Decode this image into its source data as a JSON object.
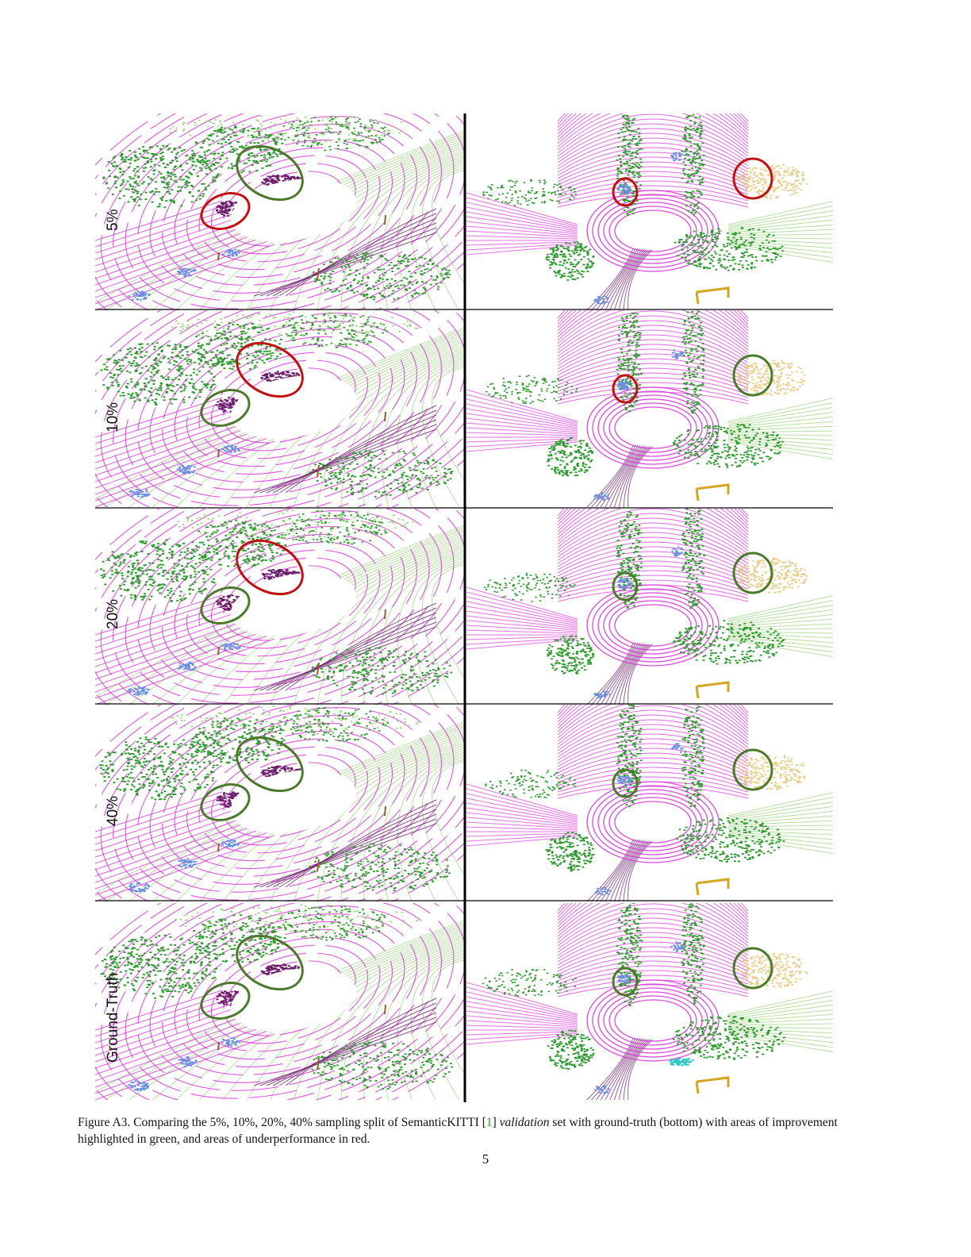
{
  "figure": {
    "rows": [
      {
        "label": "5%",
        "left_marks": [
          "green",
          "red"
        ],
        "right_marks": [
          "red",
          "red"
        ]
      },
      {
        "label": "10%",
        "left_marks": [
          "red",
          "green"
        ],
        "right_marks": [
          "red",
          "green"
        ]
      },
      {
        "label": "20%",
        "left_marks": [
          "red",
          "green"
        ],
        "right_marks": [
          "green",
          "green"
        ]
      },
      {
        "label": "40%",
        "left_marks": [
          "green",
          "green"
        ],
        "right_marks": [
          "green",
          "green"
        ]
      },
      {
        "label": "Ground-Truth",
        "left_marks": [
          "green",
          "green"
        ],
        "right_marks": [
          "green",
          "green"
        ]
      }
    ],
    "colors": {
      "road": "#d836d8",
      "sidewalk": "#6b1f6b",
      "vegetation": "#2f9a2f",
      "terrain": "#9ad07a",
      "building": "#e8cf8f",
      "car": "#6a8fe0",
      "trunk": "#9a5a2a",
      "fence": "#d4a520",
      "truck": "#2fc8c8",
      "good_ring": "#4a7a2a",
      "bad_ring": "#c01010"
    }
  },
  "caption": {
    "prefix": "Figure A3. Comparing the 5%, 10%, 20%, 40% sampling split of SemanticKITTI [",
    "ref": "1",
    "mid": "] ",
    "emph": "validation",
    "suffix": " set with ground-truth (bottom) with areas of improvement highlighted in green, and areas of underperformance in red."
  },
  "page_number": "5"
}
